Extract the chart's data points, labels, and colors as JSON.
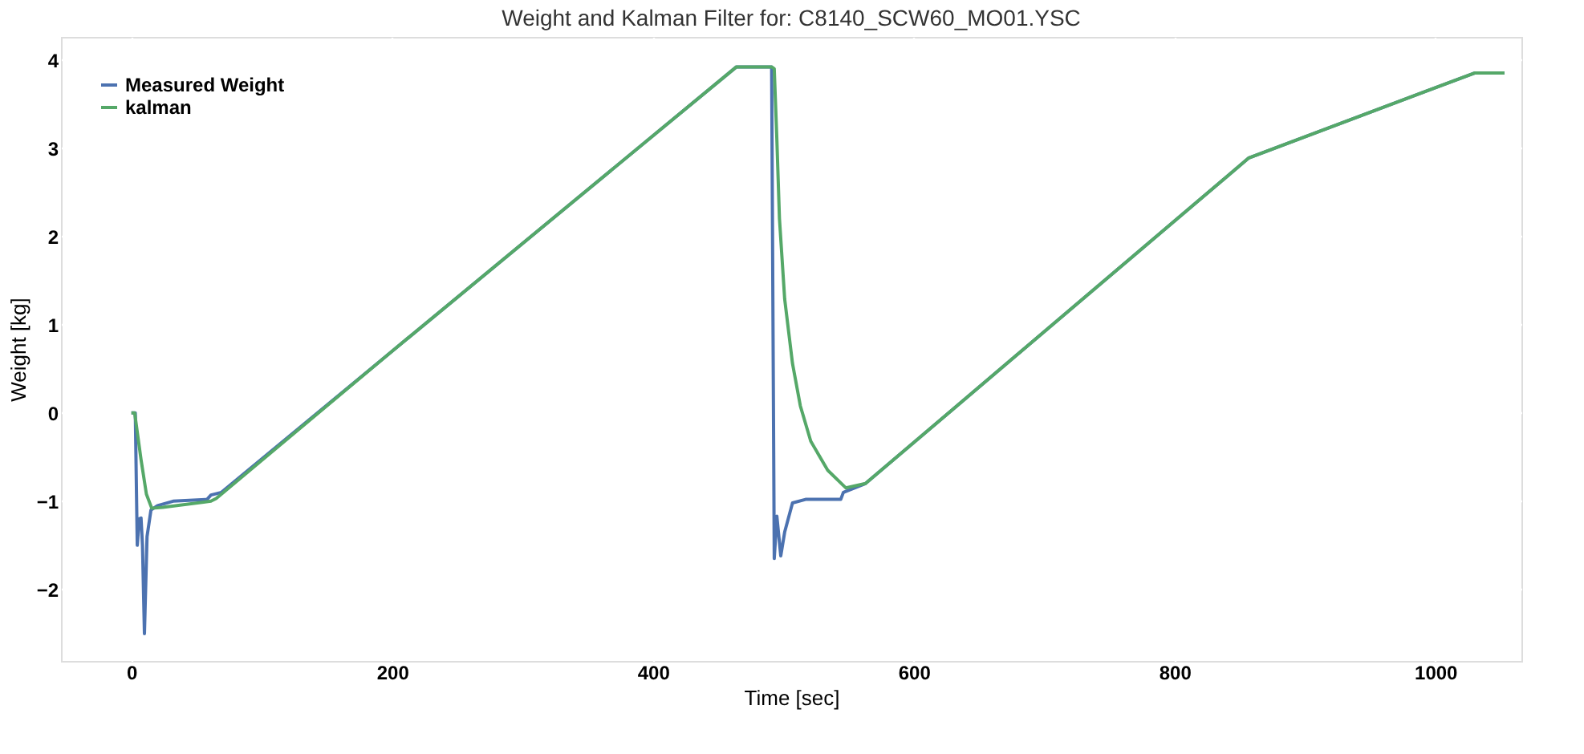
{
  "chart_data": {
    "type": "line",
    "title": "Weight and Kalman Filter for: C8140_SCW60_MO01.YSC",
    "xlabel": "Time [sec]",
    "ylabel": "Weight [kg]",
    "xlim": [
      -54,
      1066
    ],
    "ylim": [
      -2.81,
      4.26
    ],
    "xticks": [
      0,
      200,
      400,
      600,
      800,
      1000
    ],
    "yticks": [
      -2,
      -1,
      0,
      1,
      2,
      3,
      4
    ],
    "grid": true,
    "legend": "top left",
    "marker": "none",
    "line_style": "solid",
    "series": [
      {
        "name": "Measured Weight",
        "color": "#4c72b0",
        "x": [
          0,
          3,
          4.5,
          6,
          7.4,
          8.5,
          10,
          12,
          15,
          20,
          32,
          58,
          61,
          69,
          200,
          400,
          464,
          491,
          493,
          495,
          498,
          501,
          507,
          517,
          544,
          546,
          563,
          857,
          1030,
          1053
        ],
        "values": [
          0,
          0,
          -1.5,
          -1.2,
          -1.19,
          -1.5,
          -2.5,
          -1.4,
          -1.1,
          -1.05,
          -1.0,
          -0.98,
          -0.93,
          -0.9,
          0.7,
          3.14,
          3.92,
          3.92,
          -1.65,
          -1.17,
          -1.62,
          -1.35,
          -1.02,
          -0.98,
          -0.98,
          -0.9,
          -0.8,
          2.89,
          3.85,
          3.85
        ]
      },
      {
        "name": "kalman",
        "color": "#55a868",
        "x": [
          0,
          2.5,
          7.4,
          11.5,
          15.6,
          24,
          61,
          65,
          200,
          400,
          464,
          491,
          493,
          495,
          497,
          501,
          507,
          513,
          521,
          534,
          548,
          563,
          857,
          1030,
          1053
        ],
        "values": [
          0,
          0,
          -0.53,
          -0.92,
          -1.08,
          -1.07,
          -1.0,
          -0.97,
          0.7,
          3.14,
          3.92,
          3.92,
          3.9,
          3.1,
          2.2,
          1.29,
          0.56,
          0.08,
          -0.32,
          -0.65,
          -0.85,
          -0.8,
          2.89,
          3.85,
          3.85
        ]
      }
    ]
  }
}
